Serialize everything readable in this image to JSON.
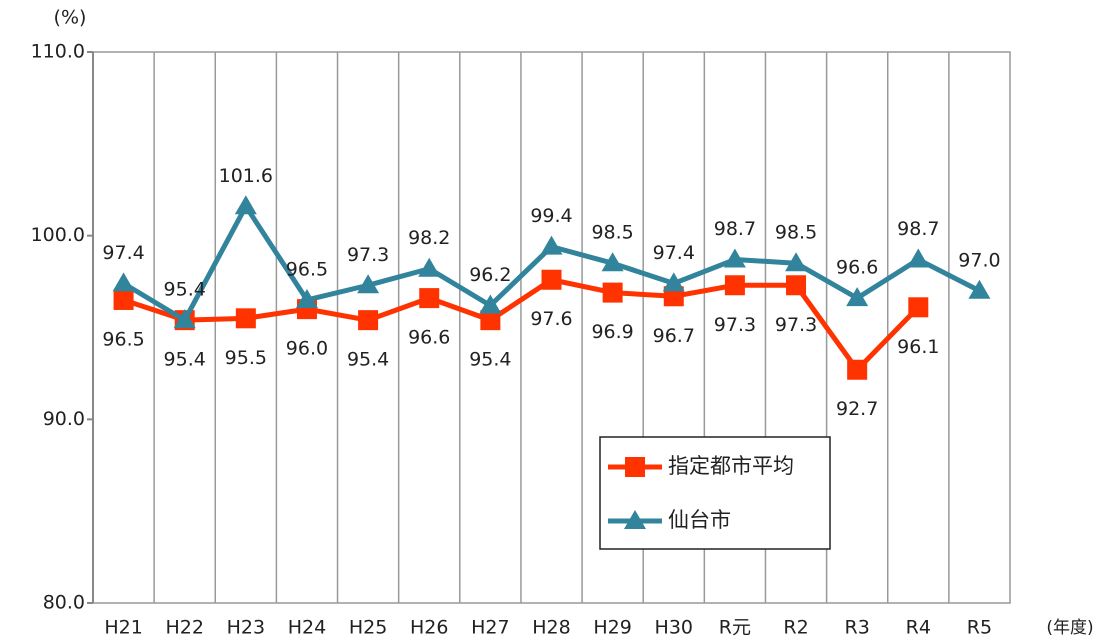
{
  "chart_data": {
    "type": "line",
    "y_label": "(%)",
    "x_label": "(年度)",
    "categories": [
      "H21",
      "H22",
      "H23",
      "H24",
      "H25",
      "H26",
      "H27",
      "H28",
      "H29",
      "H30",
      "R元",
      "R2",
      "R3",
      "R4",
      "R5"
    ],
    "series": [
      {
        "name": "指定都市平均",
        "color": "#ff3300",
        "marker": "square",
        "values": [
          96.5,
          95.4,
          95.5,
          96.0,
          95.4,
          96.6,
          95.4,
          97.6,
          96.9,
          96.7,
          97.3,
          97.3,
          92.7,
          96.1,
          null
        ],
        "value_labels": [
          "96.5",
          "95.4",
          "95.5",
          "96.0",
          "95.4",
          "96.6",
          "95.4",
          "97.6",
          "96.9",
          "96.7",
          "97.3",
          "97.3",
          "92.7",
          "96.1",
          null
        ]
      },
      {
        "name": "仙台市",
        "color": "#31849b",
        "marker": "triangle",
        "values": [
          97.4,
          95.4,
          101.6,
          96.5,
          97.3,
          98.2,
          96.2,
          99.4,
          98.5,
          97.4,
          98.7,
          98.5,
          96.6,
          98.7,
          97.0
        ],
        "value_labels": [
          "97.4",
          "95.4",
          "101.6",
          "96.5",
          "97.3",
          "98.2",
          "96.2",
          "99.4",
          "98.5",
          "97.4",
          "98.7",
          "98.5",
          "96.6",
          "98.7",
          "97.0"
        ]
      }
    ],
    "ylim": [
      80,
      110
    ],
    "yticks": [
      {
        "value": 80,
        "label": "80.0"
      },
      {
        "value": 90,
        "label": "90.0"
      },
      {
        "value": 100,
        "label": "100.0"
      },
      {
        "value": 110,
        "label": "110.0"
      }
    ],
    "grid": "x",
    "legend": "lower right"
  }
}
